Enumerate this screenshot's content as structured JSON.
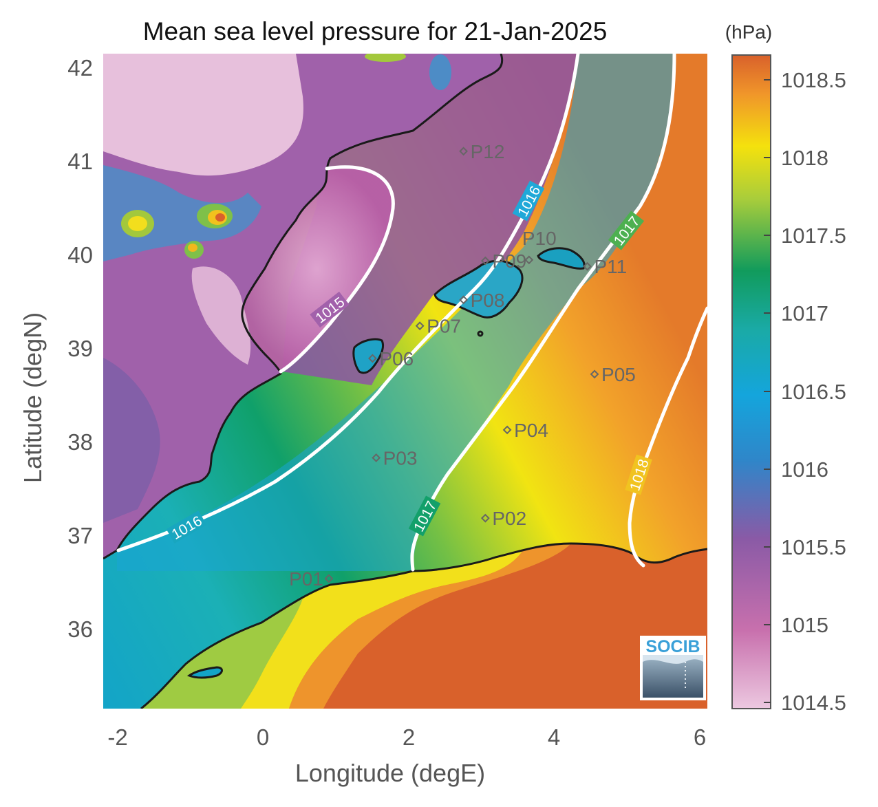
{
  "title": "Mean sea level pressure for 21-Jan-2025",
  "xlabel": "Longitude (degE)",
  "ylabel": "Latitude (degN)",
  "x_ticks": [
    "-2",
    "0",
    "2",
    "4",
    "6"
  ],
  "y_ticks": [
    "36",
    "37",
    "38",
    "39",
    "40",
    "41",
    "42"
  ],
  "colorbar": {
    "unit": "(hPa)",
    "ticks": [
      "1014.5",
      "1015",
      "1015.5",
      "1016",
      "1016.5",
      "1017",
      "1017.5",
      "1018",
      "1018.5"
    ],
    "colors": [
      "#e8bfdc",
      "#c76aab",
      "#7c5ba5",
      "#16a3dc",
      "#1aaaa8",
      "#129a5b",
      "#a8cc3a",
      "#f4e40c",
      "#f29a28",
      "#d9612b"
    ]
  },
  "contour_labels": [
    "1015",
    "1016",
    "1016",
    "1017",
    "1017",
    "1018"
  ],
  "points": [
    "P01",
    "P02",
    "P03",
    "P04",
    "P05",
    "P06",
    "P07",
    "P08",
    "P09",
    "P10",
    "P11",
    "P12"
  ],
  "logo": "SOCIB",
  "chart_data": {
    "type": "heatmap",
    "title": "Mean sea level pressure for 21-Jan-2025",
    "xlabel": "Longitude (degE)",
    "ylabel": "Latitude (degN)",
    "xlim": [
      -2.25,
      6.05
    ],
    "ylim": [
      35.1,
      42.15
    ],
    "color_range": [
      1014.45,
      1018.65
    ],
    "color_unit": "hPa",
    "contour_levels": [
      1015,
      1016,
      1017,
      1018
    ],
    "stations": [
      {
        "name": "P01",
        "lon": 0.85,
        "lat": 36.5
      },
      {
        "name": "P02",
        "lon": 3.0,
        "lat": 37.15
      },
      {
        "name": "P03",
        "lon": 1.5,
        "lat": 37.8
      },
      {
        "name": "P04",
        "lon": 3.3,
        "lat": 38.1
      },
      {
        "name": "P05",
        "lon": 4.5,
        "lat": 38.7
      },
      {
        "name": "P06",
        "lon": 1.45,
        "lat": 38.87
      },
      {
        "name": "P07",
        "lon": 2.1,
        "lat": 39.22
      },
      {
        "name": "P08",
        "lon": 2.7,
        "lat": 39.5
      },
      {
        "name": "P09",
        "lon": 3.0,
        "lat": 39.92
      },
      {
        "name": "P10",
        "lon": 3.6,
        "lat": 39.93
      },
      {
        "name": "P11",
        "lon": 4.4,
        "lat": 39.86
      },
      {
        "name": "P12",
        "lon": 2.7,
        "lat": 41.1
      }
    ]
  }
}
